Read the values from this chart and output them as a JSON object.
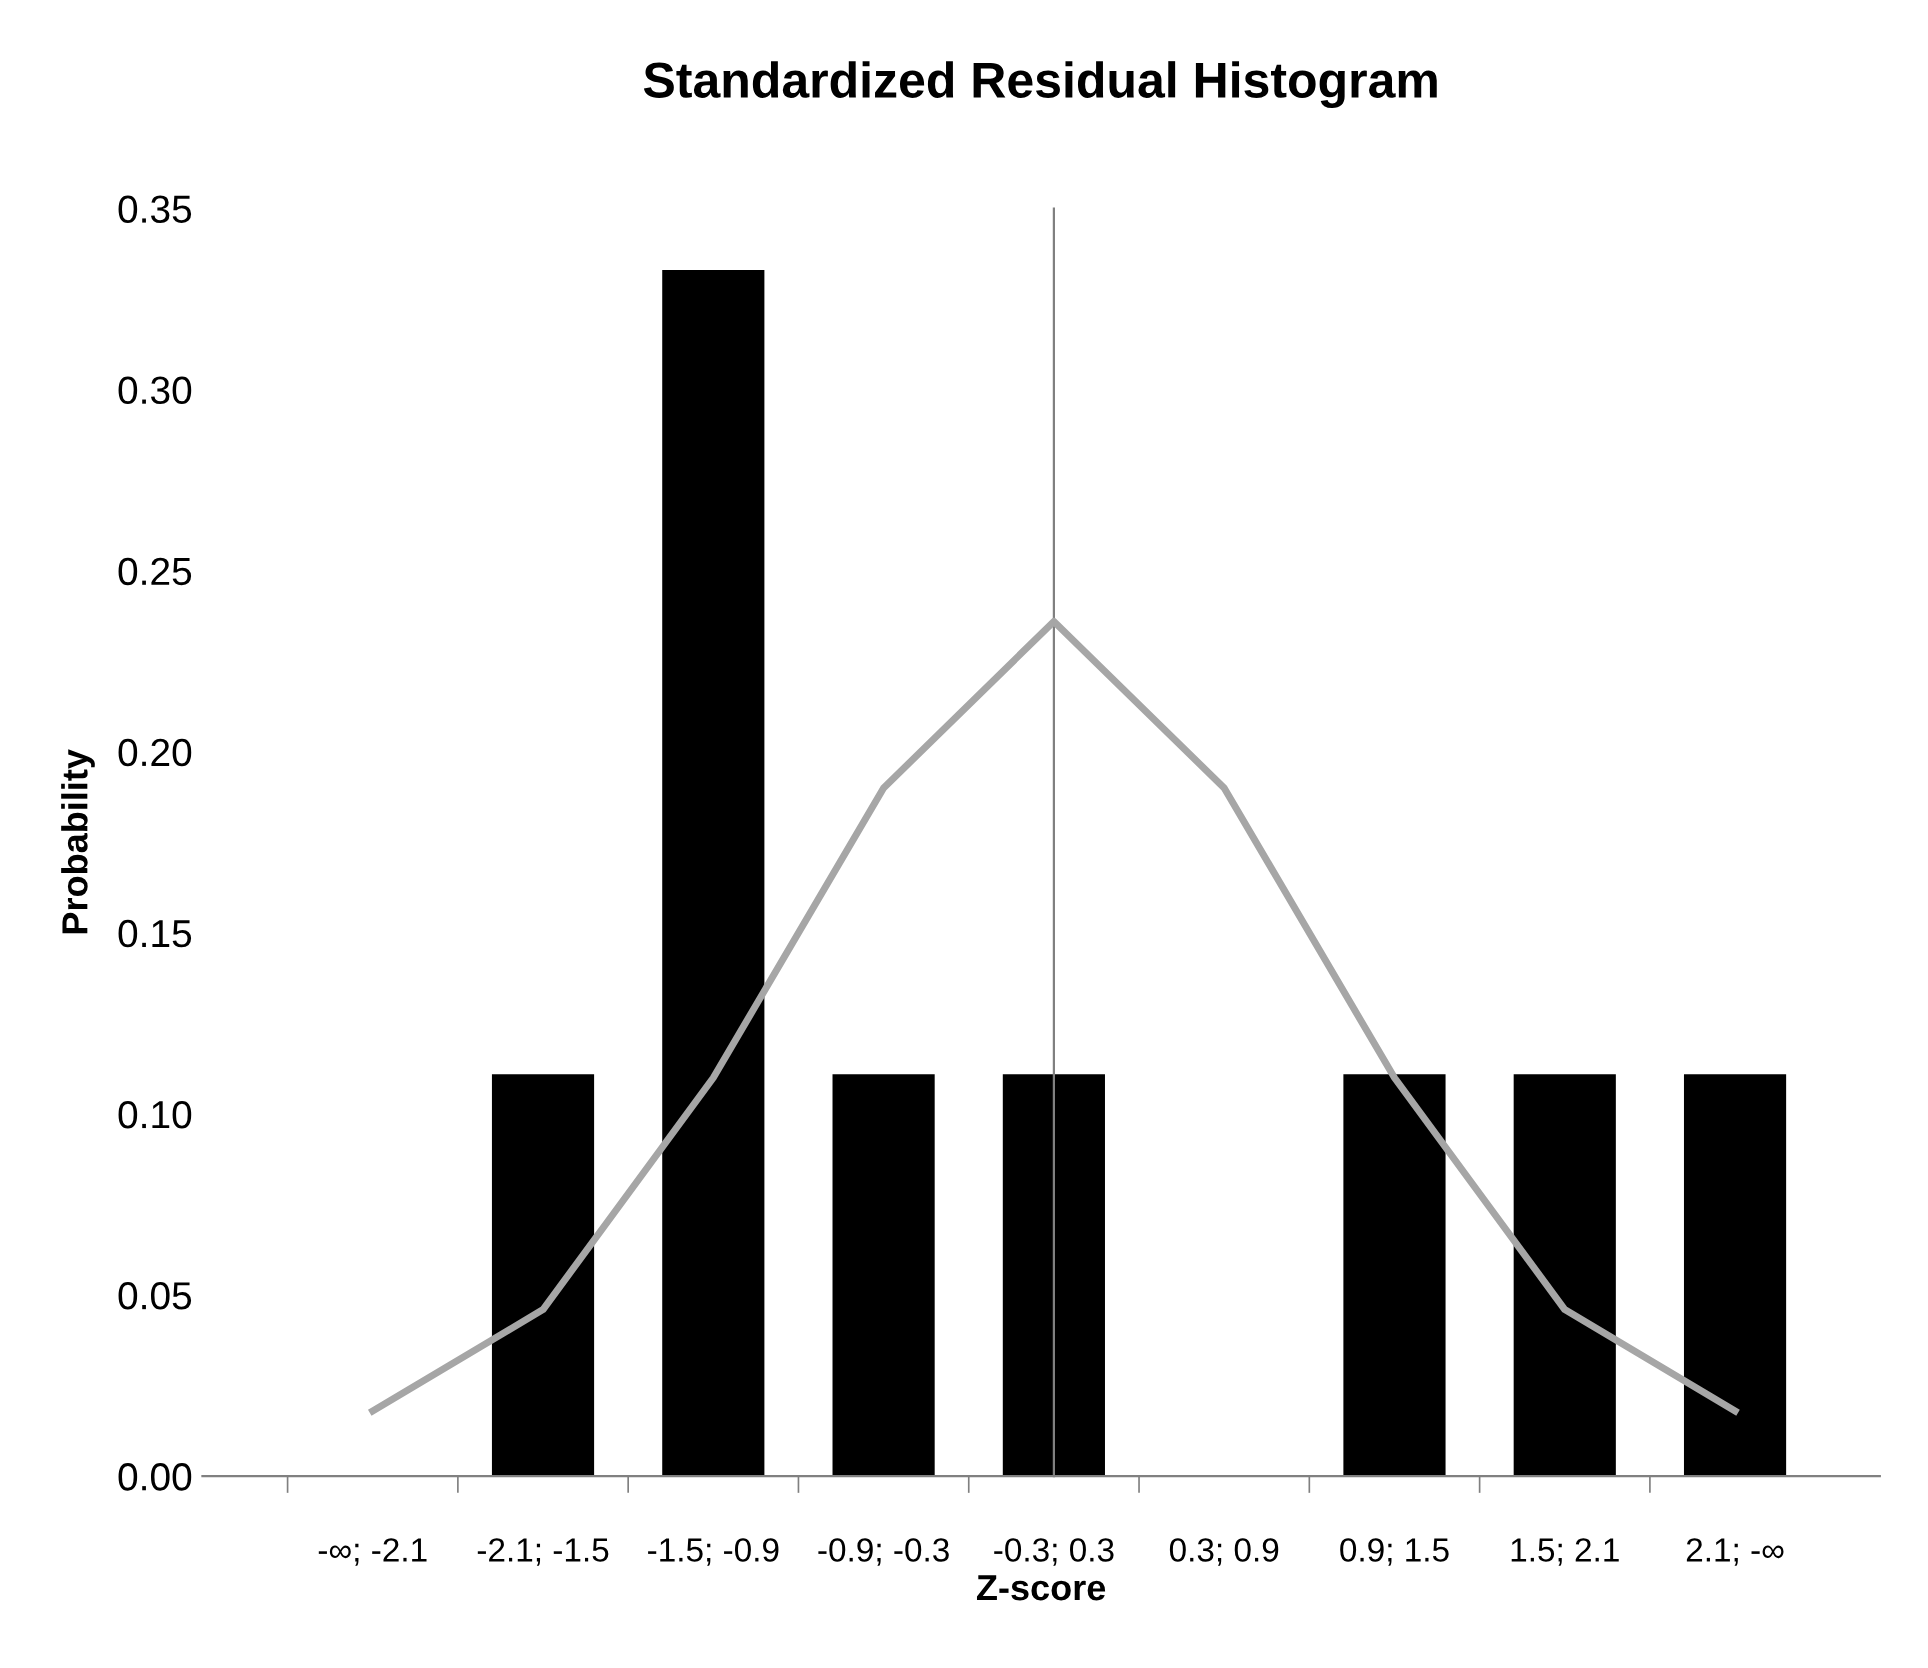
{
  "chart_data": {
    "type": "bar",
    "title": "Standardized Residual Histogram",
    "xlabel": "Z-score",
    "ylabel": "Probability",
    "categories": [
      "-∞; -2.1",
      "-2.1; -1.5",
      "-1.5; -0.9",
      "-0.9; -0.3",
      "-0.3; 0.3",
      "0.3; 0.9",
      "0.9; 1.5",
      "1.5; 2.1",
      "2.1; -∞"
    ],
    "series": [
      {
        "color": "#000000",
        "values": [
          0,
          0.111,
          0.333,
          0.111,
          0.111,
          0,
          0.111,
          0.111,
          0.111
        ]
      },
      {
        "type": "line",
        "color": "#a6a6a6",
        "values": [
          0.018,
          0.046,
          0.11,
          0.19,
          0.236,
          0.19,
          0.11,
          0.046,
          0.018
        ]
      }
    ],
    "ylim": [
      0,
      0.35
    ],
    "yticks": [
      {
        "value": 0,
        "label": "0.00"
      },
      {
        "value": 0.05,
        "label": "0.05"
      },
      {
        "value": 0.1,
        "label": "0.10"
      },
      {
        "value": 0.15,
        "label": "0.15"
      },
      {
        "value": 0.2,
        "label": "0.20"
      },
      {
        "value": 0.25,
        "label": "0.25"
      },
      {
        "value": 0.3,
        "label": "0.30"
      },
      {
        "value": 0.35,
        "label": "0.35"
      }
    ],
    "legend": false,
    "marker": "none",
    "line_style": "solid"
  }
}
